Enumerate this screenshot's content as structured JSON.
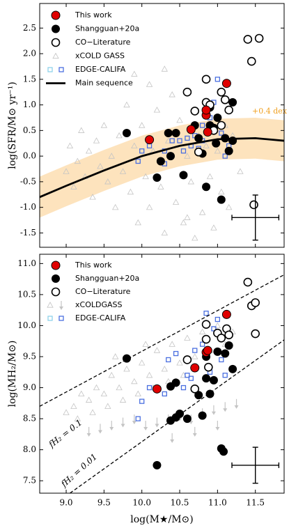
{
  "chart_data": [
    {
      "type": "scatter",
      "ylabel": "log(SFR/M⊙ yr⁻¹)",
      "xlim": [
        8.65,
        11.88
      ],
      "ylim": [
        -1.78,
        2.98
      ],
      "xticks": [
        9,
        9.5,
        10,
        10.5,
        11,
        11.5
      ],
      "yticks": [
        -1.5,
        {
          "value": -1,
          "label": "-1.0"
        },
        -0.5,
        {
          "value": 0,
          "label": "0.0"
        },
        0.5,
        {
          "value": 1,
          "label": "1.0"
        },
        1.5,
        {
          "value": 2,
          "label": "2.0"
        },
        2.5
      ],
      "series": [
        {
          "name": "xCOLD GASS",
          "marker": "triangle",
          "color": "#c4c4c4",
          "x": [
            9.0,
            9.05,
            9.1,
            9.15,
            9.2,
            9.25,
            9.3,
            9.35,
            9.4,
            9.45,
            9.5,
            9.55,
            9.6,
            9.65,
            9.7,
            9.75,
            9.8,
            9.85,
            9.9,
            9.95,
            10.0,
            10.05,
            10.1,
            10.1,
            10.15,
            10.2,
            10.25,
            10.3,
            10.35,
            10.4,
            10.45,
            10.5,
            10.55,
            10.6,
            10.65,
            10.7,
            10.75,
            10.8,
            10.85,
            10.9,
            10.95,
            11.0,
            11.05,
            11.1,
            11.15,
            11.2,
            11.3,
            9.9,
            10.3,
            10.6
          ],
          "y": [
            -0.3,
            0.2,
            -0.6,
            -0.1,
            0.5,
            -0.4,
            0.1,
            -0.8,
            0.3,
            -0.2,
            0.6,
            -0.5,
            0.0,
            -1.0,
            0.4,
            -0.3,
            1.0,
            -0.7,
            0.2,
            -1.3,
            0.6,
            -0.4,
            1.4,
            -1.0,
            0.1,
            0.9,
            -0.6,
            -1.5,
            0.3,
            1.2,
            -0.9,
            0.7,
            -1.3,
            0.0,
            -0.5,
            -1.6,
            0.4,
            -1.1,
            0.2,
            -0.4,
            -1.4,
            0.1,
            -0.7,
            0.6,
            -1.0,
            0.4,
            -0.3,
            1.6,
            1.7,
            -1.2
          ]
        },
        {
          "name": "EDGE-CALIFA",
          "marker": "square",
          "colors": [
            "#8fd3ea",
            "#4a6fe0"
          ],
          "x": [
            9.95,
            10.0,
            10.1,
            10.3,
            10.4,
            10.5,
            10.6,
            10.65,
            10.7,
            10.8,
            10.8,
            10.9,
            10.95,
            11.0,
            11.05,
            11.1,
            11.15,
            10.55,
            10.75,
            10.3
          ],
          "y": [
            -0.1,
            0.1,
            0.2,
            0.1,
            0.3,
            0.3,
            0.35,
            0.2,
            0.4,
            0.3,
            0.6,
            0.75,
            1.05,
            1.5,
            0.45,
            0.0,
            0.2,
            0.1,
            0.15,
            -0.15
          ]
        },
        {
          "name": "Shangguan+20a",
          "marker": "dot",
          "color": "#000000",
          "x": [
            9.8,
            10.2,
            10.35,
            10.45,
            10.38,
            10.55,
            10.7,
            10.75,
            10.8,
            10.85,
            10.9,
            10.95,
            11.0,
            11.05,
            11.1,
            11.15,
            11.2,
            10.9,
            10.98,
            11.2,
            10.25
          ],
          "y": [
            0.45,
            -0.42,
            0.45,
            0.45,
            0.0,
            -0.37,
            0.6,
            0.35,
            0.05,
            -0.6,
            0.95,
            0.55,
            0.75,
            -0.85,
            0.35,
            0.1,
            0.3,
            0.6,
            0.25,
            1.05,
            -0.1
          ]
        },
        {
          "name": "CO−Literature",
          "marker": "open",
          "color": "#000000",
          "x": [
            10.6,
            10.85,
            10.7,
            10.85,
            10.9,
            11.05,
            11.1,
            11.15,
            11.05,
            10.95,
            11.4,
            11.55,
            11.45,
            10.75,
            11.48
          ],
          "y": [
            1.25,
            1.5,
            0.88,
            1.05,
            1.0,
            1.25,
            1.1,
            0.9,
            0.6,
            0.5,
            2.28,
            2.3,
            1.85,
            0.08,
            -0.95
          ]
        },
        {
          "name": "This work",
          "marker": "red",
          "color": "#e00000",
          "x": [
            10.1,
            10.65,
            10.85,
            10.85,
            10.87,
            11.12
          ],
          "y": [
            0.32,
            0.52,
            0.8,
            0.9,
            0.47,
            1.42
          ]
        }
      ],
      "lines": [
        {
          "name": "Main sequence",
          "color": "#000000",
          "band": 0.4,
          "band_color": "#fde3bd",
          "x": [
            8.65,
            9.0,
            9.5,
            10.0,
            10.5,
            11.0,
            11.5,
            11.88
          ],
          "y": [
            -0.8,
            -0.58,
            -0.28,
            0.0,
            0.2,
            0.33,
            0.35,
            0.3
          ]
        }
      ],
      "annotations": [
        "+0.4 dex"
      ],
      "errorbar": {
        "x": 11.5,
        "y": -1.2,
        "xerr": 0.31,
        "yerr": 0.44
      }
    },
    {
      "type": "scatter",
      "ylabel": "log(MH₂/M⊙)",
      "xlabel": "log(M★/M⊙)",
      "xlim": [
        8.65,
        11.88
      ],
      "ylim": [
        7.3,
        11.15
      ],
      "xticks": [
        {
          "value": 9,
          "label": "9.0"
        },
        9.5,
        {
          "value": 10,
          "label": "10.0"
        },
        10.5,
        {
          "value": 11,
          "label": "11.0"
        },
        11.5
      ],
      "yticks": [
        7.5,
        {
          "value": 8,
          "label": "8.0"
        },
        8.5,
        {
          "value": 9,
          "label": "9.0"
        },
        9.5,
        {
          "value": 10,
          "label": "10.0"
        },
        10.5,
        {
          "value": 11,
          "label": "11.0"
        }
      ],
      "series": [
        {
          "name": "xCOLDGASS",
          "marker": "triangle",
          "color": "#c4c4c4",
          "x": [
            9.0,
            9.1,
            9.15,
            9.2,
            9.3,
            9.35,
            9.4,
            9.5,
            9.55,
            9.6,
            9.7,
            9.75,
            9.8,
            9.9,
            9.95,
            10.0,
            10.1,
            10.15,
            10.2,
            10.3,
            10.35,
            10.4,
            10.5,
            10.55,
            10.6,
            10.7,
            10.8,
            10.9,
            11.0,
            11.1,
            11.2,
            9.65,
            10.05
          ],
          "y": [
            8.6,
            8.7,
            8.5,
            8.9,
            8.8,
            8.6,
            9.0,
            8.9,
            8.7,
            9.2,
            9.0,
            8.8,
            9.3,
            9.1,
            8.9,
            9.4,
            9.2,
            9.0,
            9.6,
            9.3,
            9.1,
            9.7,
            9.4,
            9.2,
            9.8,
            9.5,
            9.9,
            9.6,
            10.0,
            9.7,
            9.9,
            9.5,
            9.7
          ],
          "upper_limits": {
            "x": [
              9.3,
              9.45,
              9.6,
              9.75,
              9.9,
              10.05,
              10.2,
              10.35,
              10.5,
              10.65,
              10.8,
              10.95,
              11.1,
              11.25,
              10.4,
              10.7,
              11.0
            ],
            "y": [
              8.3,
              8.35,
              8.4,
              8.45,
              8.5,
              8.4,
              8.45,
              8.5,
              8.55,
              8.5,
              8.6,
              8.65,
              8.7,
              8.75,
              8.2,
              8.3,
              8.4
            ]
          }
        },
        {
          "name": "EDGE-CALIFA",
          "marker": "square",
          "colors": [
            "#8fd3ea",
            "#4a6fe0"
          ],
          "x": [
            9.95,
            10.0,
            10.1,
            10.3,
            10.35,
            10.45,
            10.55,
            10.6,
            10.7,
            10.8,
            10.85,
            10.9,
            10.95,
            11.0,
            11.05,
            11.1,
            11.2,
            10.65
          ],
          "y": [
            8.5,
            8.78,
            9.0,
            8.9,
            9.45,
            9.55,
            9.0,
            9.2,
            9.6,
            9.7,
            10.2,
            9.25,
            9.95,
            10.1,
            9.45,
            9.2,
            9.3,
            9.15
          ]
        },
        {
          "name": "Shangguan+20a",
          "marker": "dot",
          "color": "#000000",
          "x": [
            9.8,
            10.2,
            10.38,
            10.45,
            10.38,
            10.5,
            10.6,
            10.75,
            10.8,
            10.85,
            10.9,
            10.95,
            11.0,
            11.05,
            11.08,
            11.1,
            11.15,
            11.2,
            10.45,
            10.85
          ],
          "y": [
            9.47,
            7.75,
            8.47,
            8.52,
            9.02,
            8.58,
            8.5,
            8.88,
            8.55,
            9.15,
            8.9,
            9.12,
            9.58,
            8.02,
            7.97,
            9.55,
            9.68,
            9.3,
            9.08,
            9.5
          ]
        },
        {
          "name": "CO−Literature",
          "marker": "open",
          "color": "#000000",
          "x": [
            10.6,
            10.7,
            10.85,
            10.85,
            10.88,
            11.0,
            11.05,
            11.12,
            11.15,
            11.4,
            11.45,
            11.5,
            11.5
          ],
          "y": [
            9.45,
            8.98,
            10.02,
            9.78,
            9.33,
            9.88,
            9.8,
            9.95,
            9.85,
            10.7,
            10.32,
            10.37,
            9.87
          ]
        },
        {
          "name": "This work",
          "marker": "red",
          "color": "#e00000",
          "x": [
            10.2,
            10.7,
            10.85,
            10.87,
            11.12
          ],
          "y": [
            8.98,
            9.32,
            9.57,
            9.6,
            10.18
          ]
        }
      ],
      "lines": [
        {
          "name": "fH₂ = 0.1",
          "color": "#000000",
          "dashed": true,
          "x": [
            8.65,
            11.88
          ],
          "y": [
            8.7,
            10.82
          ]
        },
        {
          "name": "fH₂ = 0.01",
          "color": "#000000",
          "dashed": true,
          "x": [
            9.05,
            11.88
          ],
          "y": [
            7.3,
            9.77
          ]
        }
      ],
      "errorbar": {
        "x": 11.5,
        "y": 7.75,
        "xerr": 0.31,
        "yerr": 0.29
      }
    }
  ]
}
